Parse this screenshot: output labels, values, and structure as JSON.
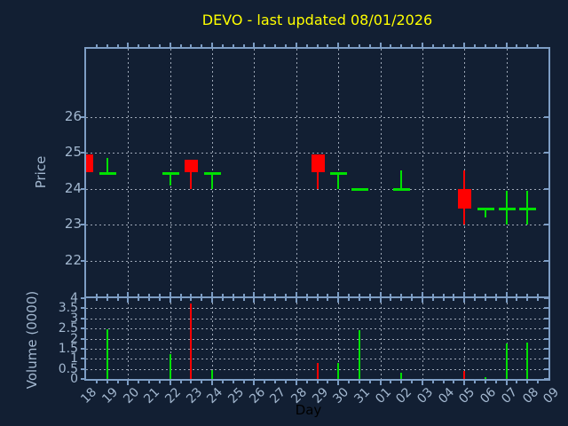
{
  "title": "DEVO - last updated 08/01/2026",
  "axes": {
    "price_label": "Price",
    "volume_label": "Volume (0000)",
    "day_label": "Day",
    "price_ticks": [
      26,
      25,
      24,
      23,
      22
    ],
    "volume_ticks": [
      4,
      3.5,
      3,
      2.5,
      2,
      1.5,
      1,
      0.5,
      0
    ],
    "day_ticks": [
      "18",
      "19",
      "20",
      "21",
      "22",
      "23",
      "24",
      "25",
      "26",
      "27",
      "28",
      "29",
      "30",
      "31",
      "01",
      "02",
      "03",
      "04",
      "05",
      "06",
      "07",
      "08",
      "09"
    ]
  },
  "colors": {
    "background": "#121f33",
    "border": "#7d9dc4",
    "tick_label": "#a3b8d0",
    "grid": "#b7c0ce",
    "title": "#ffff00",
    "up": "#00e000",
    "down": "#ff0000",
    "day_label": "#000000"
  },
  "chart_data": [
    {
      "type": "candlestick",
      "panel": "price",
      "title": "DEVO - last updated 08/01/2026",
      "ylabel": "Price",
      "ylim": [
        21,
        27.9
      ],
      "y_gridlines": [
        22,
        23,
        24,
        25,
        26
      ],
      "x_gridline_days": [
        "20",
        "22",
        "24",
        "26",
        "28",
        "30",
        "01",
        "03",
        "05",
        "07"
      ],
      "candles": [
        {
          "day": "18",
          "open": 24.95,
          "high": 24.95,
          "low": 24.45,
          "close": 24.45,
          "direction": "down"
        },
        {
          "day": "19",
          "open": 24.45,
          "high": 24.85,
          "low": 24.45,
          "close": 24.45,
          "direction": "up"
        },
        {
          "day": "22",
          "open": 24.45,
          "high": 24.45,
          "low": 24.1,
          "close": 24.45,
          "direction": "up"
        },
        {
          "day": "23",
          "open": 24.8,
          "high": 24.8,
          "low": 24.0,
          "close": 24.45,
          "direction": "down"
        },
        {
          "day": "24",
          "open": 24.45,
          "high": 24.45,
          "low": 24.0,
          "close": 24.45,
          "direction": "up"
        },
        {
          "day": "29",
          "open": 24.95,
          "high": 24.95,
          "low": 24.0,
          "close": 24.45,
          "direction": "down"
        },
        {
          "day": "30",
          "open": 24.45,
          "high": 24.45,
          "low": 24.0,
          "close": 24.45,
          "direction": "up"
        },
        {
          "day": "31",
          "open": 24.0,
          "high": 24.0,
          "low": 24.0,
          "close": 24.0,
          "direction": "up"
        },
        {
          "day": "02",
          "open": 24.0,
          "high": 24.5,
          "low": 24.0,
          "close": 24.0,
          "direction": "up"
        },
        {
          "day": "05",
          "open": 24.0,
          "high": 24.5,
          "low": 23.0,
          "close": 23.45,
          "direction": "down"
        },
        {
          "day": "06",
          "open": 23.45,
          "high": 23.45,
          "low": 23.2,
          "close": 23.45,
          "direction": "up"
        },
        {
          "day": "07",
          "open": 23.45,
          "high": 23.95,
          "low": 23.0,
          "close": 23.45,
          "direction": "up"
        },
        {
          "day": "08",
          "open": 23.45,
          "high": 23.95,
          "low": 23.0,
          "close": 23.45,
          "direction": "up"
        }
      ]
    },
    {
      "type": "bar",
      "panel": "volume",
      "ylabel": "Volume (0000)",
      "xlabel": "Day",
      "ylim": [
        0,
        4
      ],
      "y_gridlines": [
        0.5,
        1,
        1.5,
        2,
        2.5,
        3,
        3.5
      ],
      "bars": [
        {
          "day": "19",
          "value": 2.45,
          "direction": "up"
        },
        {
          "day": "22",
          "value": 1.25,
          "direction": "up"
        },
        {
          "day": "23",
          "value": 3.75,
          "direction": "down"
        },
        {
          "day": "24",
          "value": 0.45,
          "direction": "up"
        },
        {
          "day": "29",
          "value": 0.8,
          "direction": "down"
        },
        {
          "day": "30",
          "value": 0.8,
          "direction": "up"
        },
        {
          "day": "31",
          "value": 2.4,
          "direction": "up"
        },
        {
          "day": "02",
          "value": 0.3,
          "direction": "up"
        },
        {
          "day": "05",
          "value": 0.4,
          "direction": "down"
        },
        {
          "day": "06",
          "value": 0.1,
          "direction": "up"
        },
        {
          "day": "07",
          "value": 1.75,
          "direction": "up"
        },
        {
          "day": "08",
          "value": 1.8,
          "direction": "up"
        }
      ]
    }
  ]
}
